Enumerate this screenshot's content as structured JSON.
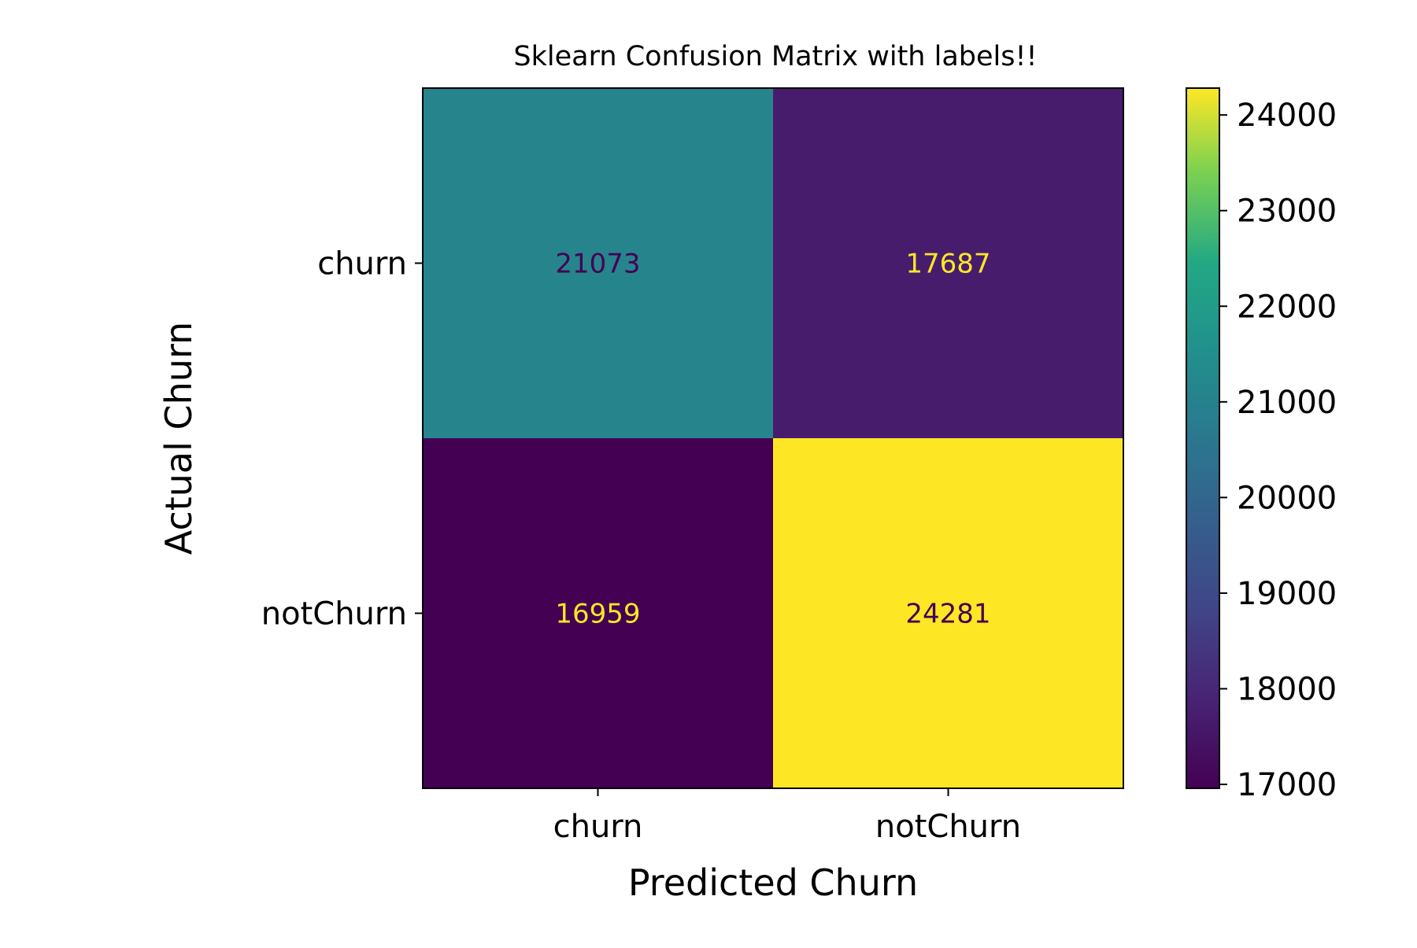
{
  "chart_data": {
    "type": "heatmap",
    "title": "Sklearn Confusion Matrix with labels!!",
    "xlabel": "Predicted Churn",
    "ylabel": "Actual Churn",
    "x_categories": [
      "churn",
      "notChurn"
    ],
    "y_categories": [
      "churn",
      "notChurn"
    ],
    "values": [
      [
        21073,
        17687
      ],
      [
        16959,
        24281
      ]
    ],
    "colormap": "viridis",
    "colorbar": {
      "min": 16959,
      "max": 24281,
      "ticks": [
        17000,
        18000,
        19000,
        20000,
        21000,
        22000,
        23000,
        24000
      ],
      "tick_labels": [
        "17000",
        "18000",
        "19000",
        "20000",
        "21000",
        "22000",
        "23000",
        "24000"
      ]
    },
    "grid": false
  }
}
